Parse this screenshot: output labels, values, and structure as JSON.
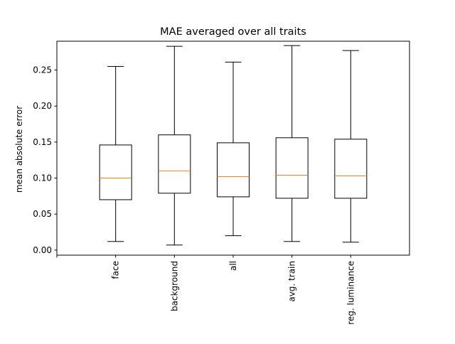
{
  "chart_data": {
    "type": "box",
    "title": "MAE averaged over all traits",
    "xlabel": "",
    "ylabel": "mean absolute error",
    "ylim": [
      -0.007,
      0.29
    ],
    "yticks": [
      0.0,
      0.05,
      0.1,
      0.15,
      0.2,
      0.25
    ],
    "ytick_labels": [
      "0.00",
      "0.05",
      "0.10",
      "0.15",
      "0.20",
      "0.25"
    ],
    "categories": [
      "face",
      "background",
      "all",
      "avg. train",
      "reg. luminance"
    ],
    "boxes": [
      {
        "label": "face",
        "whisker_low": 0.012,
        "q1": 0.07,
        "median": 0.1,
        "q3": 0.146,
        "whisker_high": 0.255
      },
      {
        "label": "background",
        "whisker_low": 0.007,
        "q1": 0.079,
        "median": 0.11,
        "q3": 0.16,
        "whisker_high": 0.283
      },
      {
        "label": "all",
        "whisker_low": 0.02,
        "q1": 0.074,
        "median": 0.102,
        "q3": 0.149,
        "whisker_high": 0.261
      },
      {
        "label": "avg. train",
        "whisker_low": 0.012,
        "q1": 0.072,
        "median": 0.104,
        "q3": 0.156,
        "whisker_high": 0.284
      },
      {
        "label": "reg. luminance",
        "whisker_low": 0.011,
        "q1": 0.072,
        "median": 0.103,
        "q3": 0.154,
        "whisker_high": 0.277
      }
    ],
    "grid": false,
    "legend": "none",
    "colors": {
      "box": "#000000",
      "median": "#ff7f0e"
    }
  }
}
